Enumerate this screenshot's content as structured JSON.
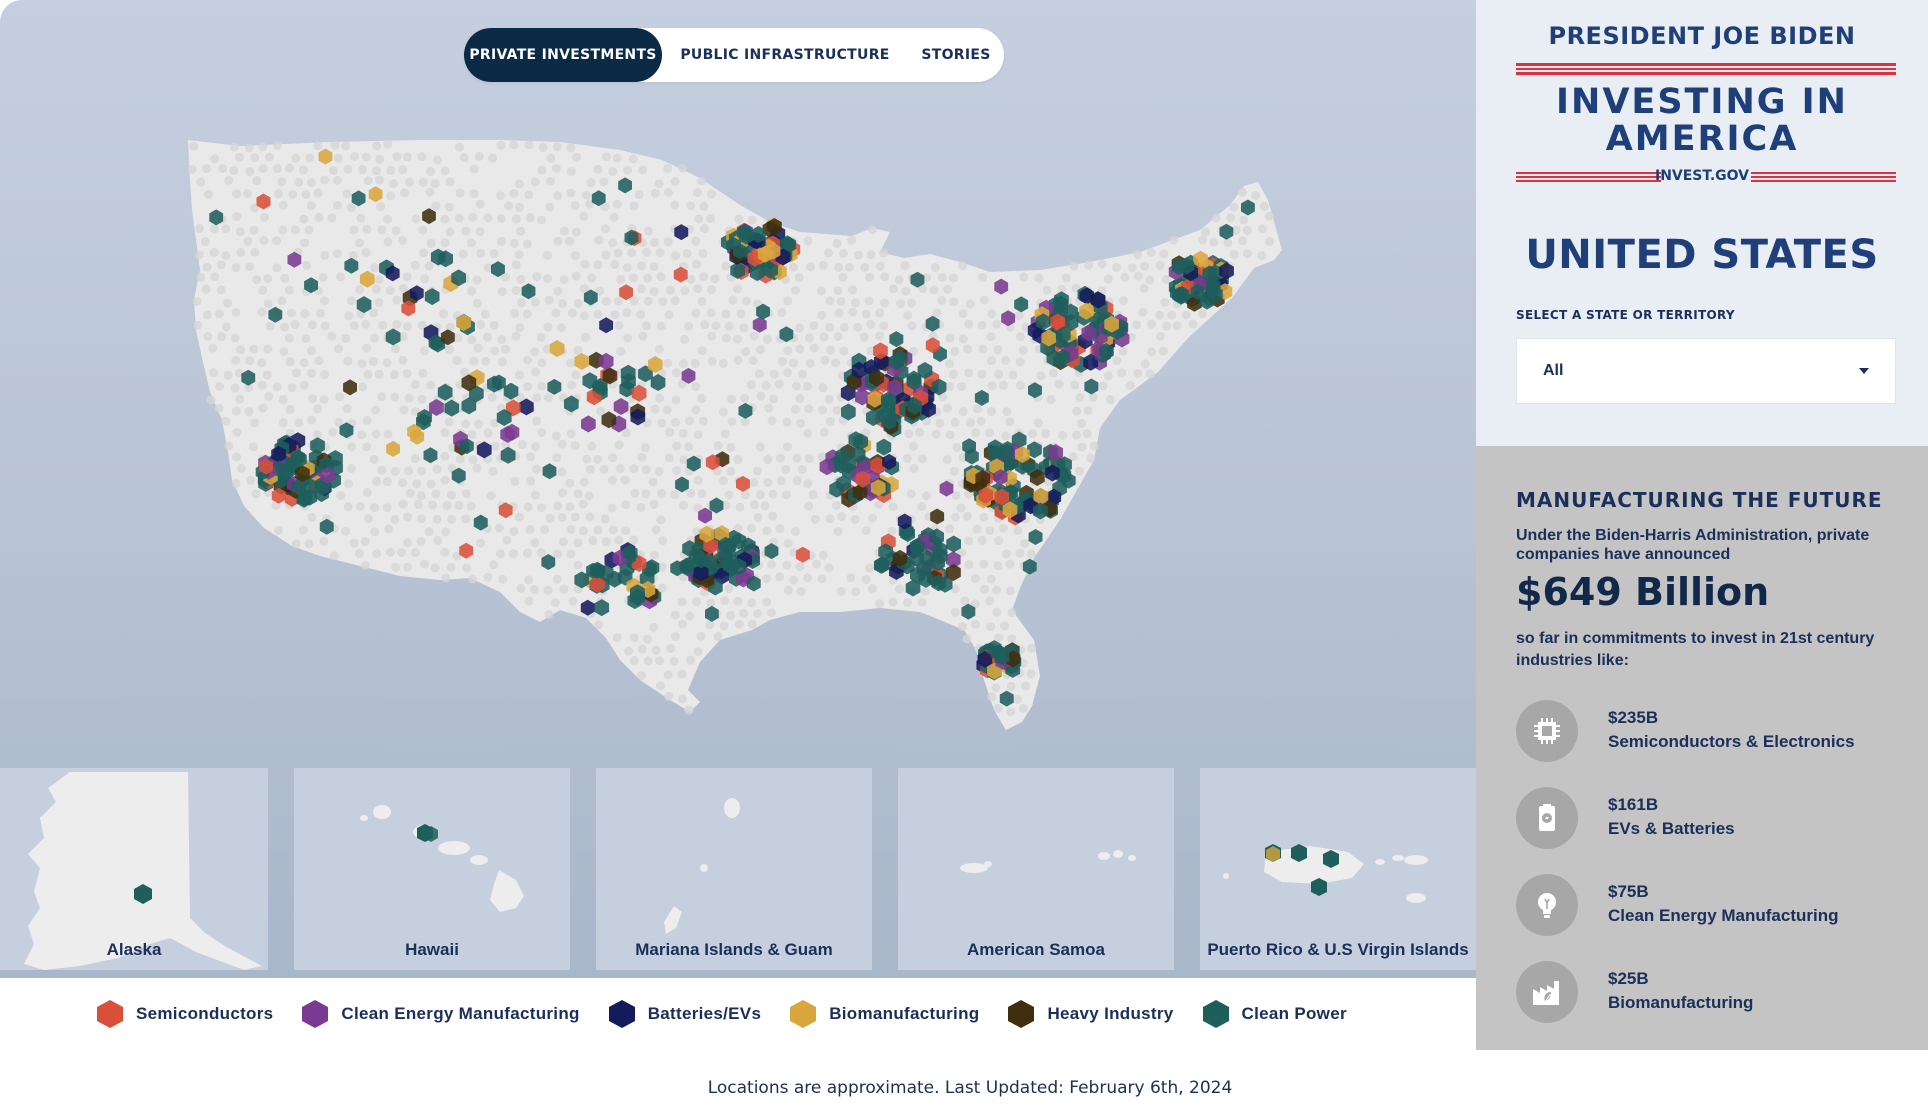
{
  "tabs": [
    {
      "label": "PRIVATE INVESTMENTS",
      "active": true
    },
    {
      "label": "PUBLIC INFRASTRUCTURE",
      "active": false
    },
    {
      "label": "STORIES",
      "active": false
    }
  ],
  "insets": [
    {
      "label": "Alaska"
    },
    {
      "label": "Hawaii"
    },
    {
      "label": "Mariana Islands & Guam"
    },
    {
      "label": "American Samoa"
    },
    {
      "label": "Puerto Rico & U.S Virgin Islands"
    }
  ],
  "legend": [
    {
      "label": "Semiconductors",
      "color": "#d9503a"
    },
    {
      "label": "Clean Energy Manufacturing",
      "color": "#7a3a91"
    },
    {
      "label": "Batteries/EVs",
      "color": "#151a5c"
    },
    {
      "label": "Biomanufacturing",
      "color": "#d9a63d"
    },
    {
      "label": "Heavy Industry",
      "color": "#3f2f0f"
    },
    {
      "label": "Clean Power",
      "color": "#1e5f5c"
    }
  ],
  "footer_note": "Locations are approximate. Last Updated: February 6th, 2024",
  "sidebar": {
    "brand": {
      "president": "PRESIDENT JOE BIDEN",
      "title_line1": "INVESTING IN",
      "title_line2": "AMERICA",
      "url": "INVEST.GOV"
    },
    "region": "UNITED STATES",
    "select_label": "SELECT A STATE OR TERRITORY",
    "select_value": "All",
    "section": {
      "heading": "MANUFACTURING THE FUTURE",
      "intro": "Under the Biden-Harris Administration, private companies have announced",
      "total": "$649 Billion",
      "outro": "so far in commitments to invest in 21st century industries like:"
    },
    "industries": [
      {
        "amount": "$235B",
        "name": "Semiconductors & Electronics",
        "icon": "chip-icon"
      },
      {
        "amount": "$161B",
        "name": "EVs & Batteries",
        "icon": "battery-icon"
      },
      {
        "amount": "$75B",
        "name": "Clean Energy Manufacturing",
        "icon": "lightbulb-icon"
      },
      {
        "amount": "$25B",
        "name": "Biomanufacturing",
        "icon": "biomanufacturing-icon"
      }
    ]
  },
  "colors": {
    "sidebar_top": "#e9edf4",
    "sidebar_bottom": "#c4c4c4",
    "brand_blue": "#1f3f7a",
    "brand_red": "#e0323c",
    "tab_active": "#0b2a45"
  }
}
